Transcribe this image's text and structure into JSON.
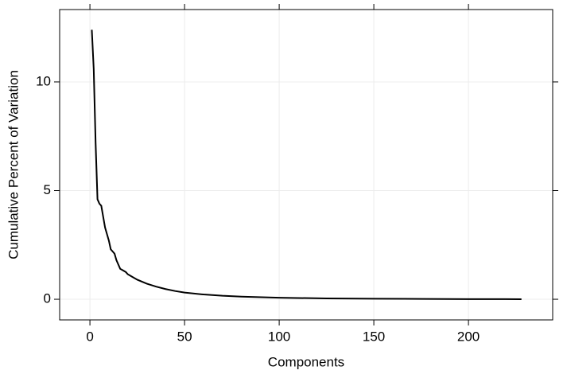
{
  "chart_data": {
    "type": "line",
    "x_label": "Components",
    "y_label": "Cumulative Percent of Variation",
    "x": [
      1,
      2,
      3,
      4,
      5,
      6,
      7,
      8,
      9,
      10,
      11,
      12,
      13,
      14,
      15,
      16,
      17,
      18,
      19,
      20,
      22,
      25,
      30,
      35,
      40,
      45,
      50,
      60,
      70,
      80,
      100,
      125,
      150,
      175,
      200,
      228
    ],
    "y": [
      12.4,
      10.6,
      7.2,
      4.6,
      4.4,
      4.3,
      3.8,
      3.3,
      3.0,
      2.7,
      2.3,
      2.2,
      2.1,
      1.8,
      1.6,
      1.4,
      1.35,
      1.3,
      1.25,
      1.15,
      1.05,
      0.9,
      0.72,
      0.58,
      0.47,
      0.38,
      0.31,
      0.22,
      0.16,
      0.12,
      0.07,
      0.04,
      0.025,
      0.015,
      0.008,
      0.003
    ],
    "color": "#000000",
    "xlim": [
      -16,
      244.5
    ],
    "ylim": [
      -0.95,
      13.33
    ],
    "xticks": [
      0,
      50,
      100,
      150,
      200
    ],
    "yticks": [
      0,
      5,
      10
    ],
    "grid": true
  }
}
